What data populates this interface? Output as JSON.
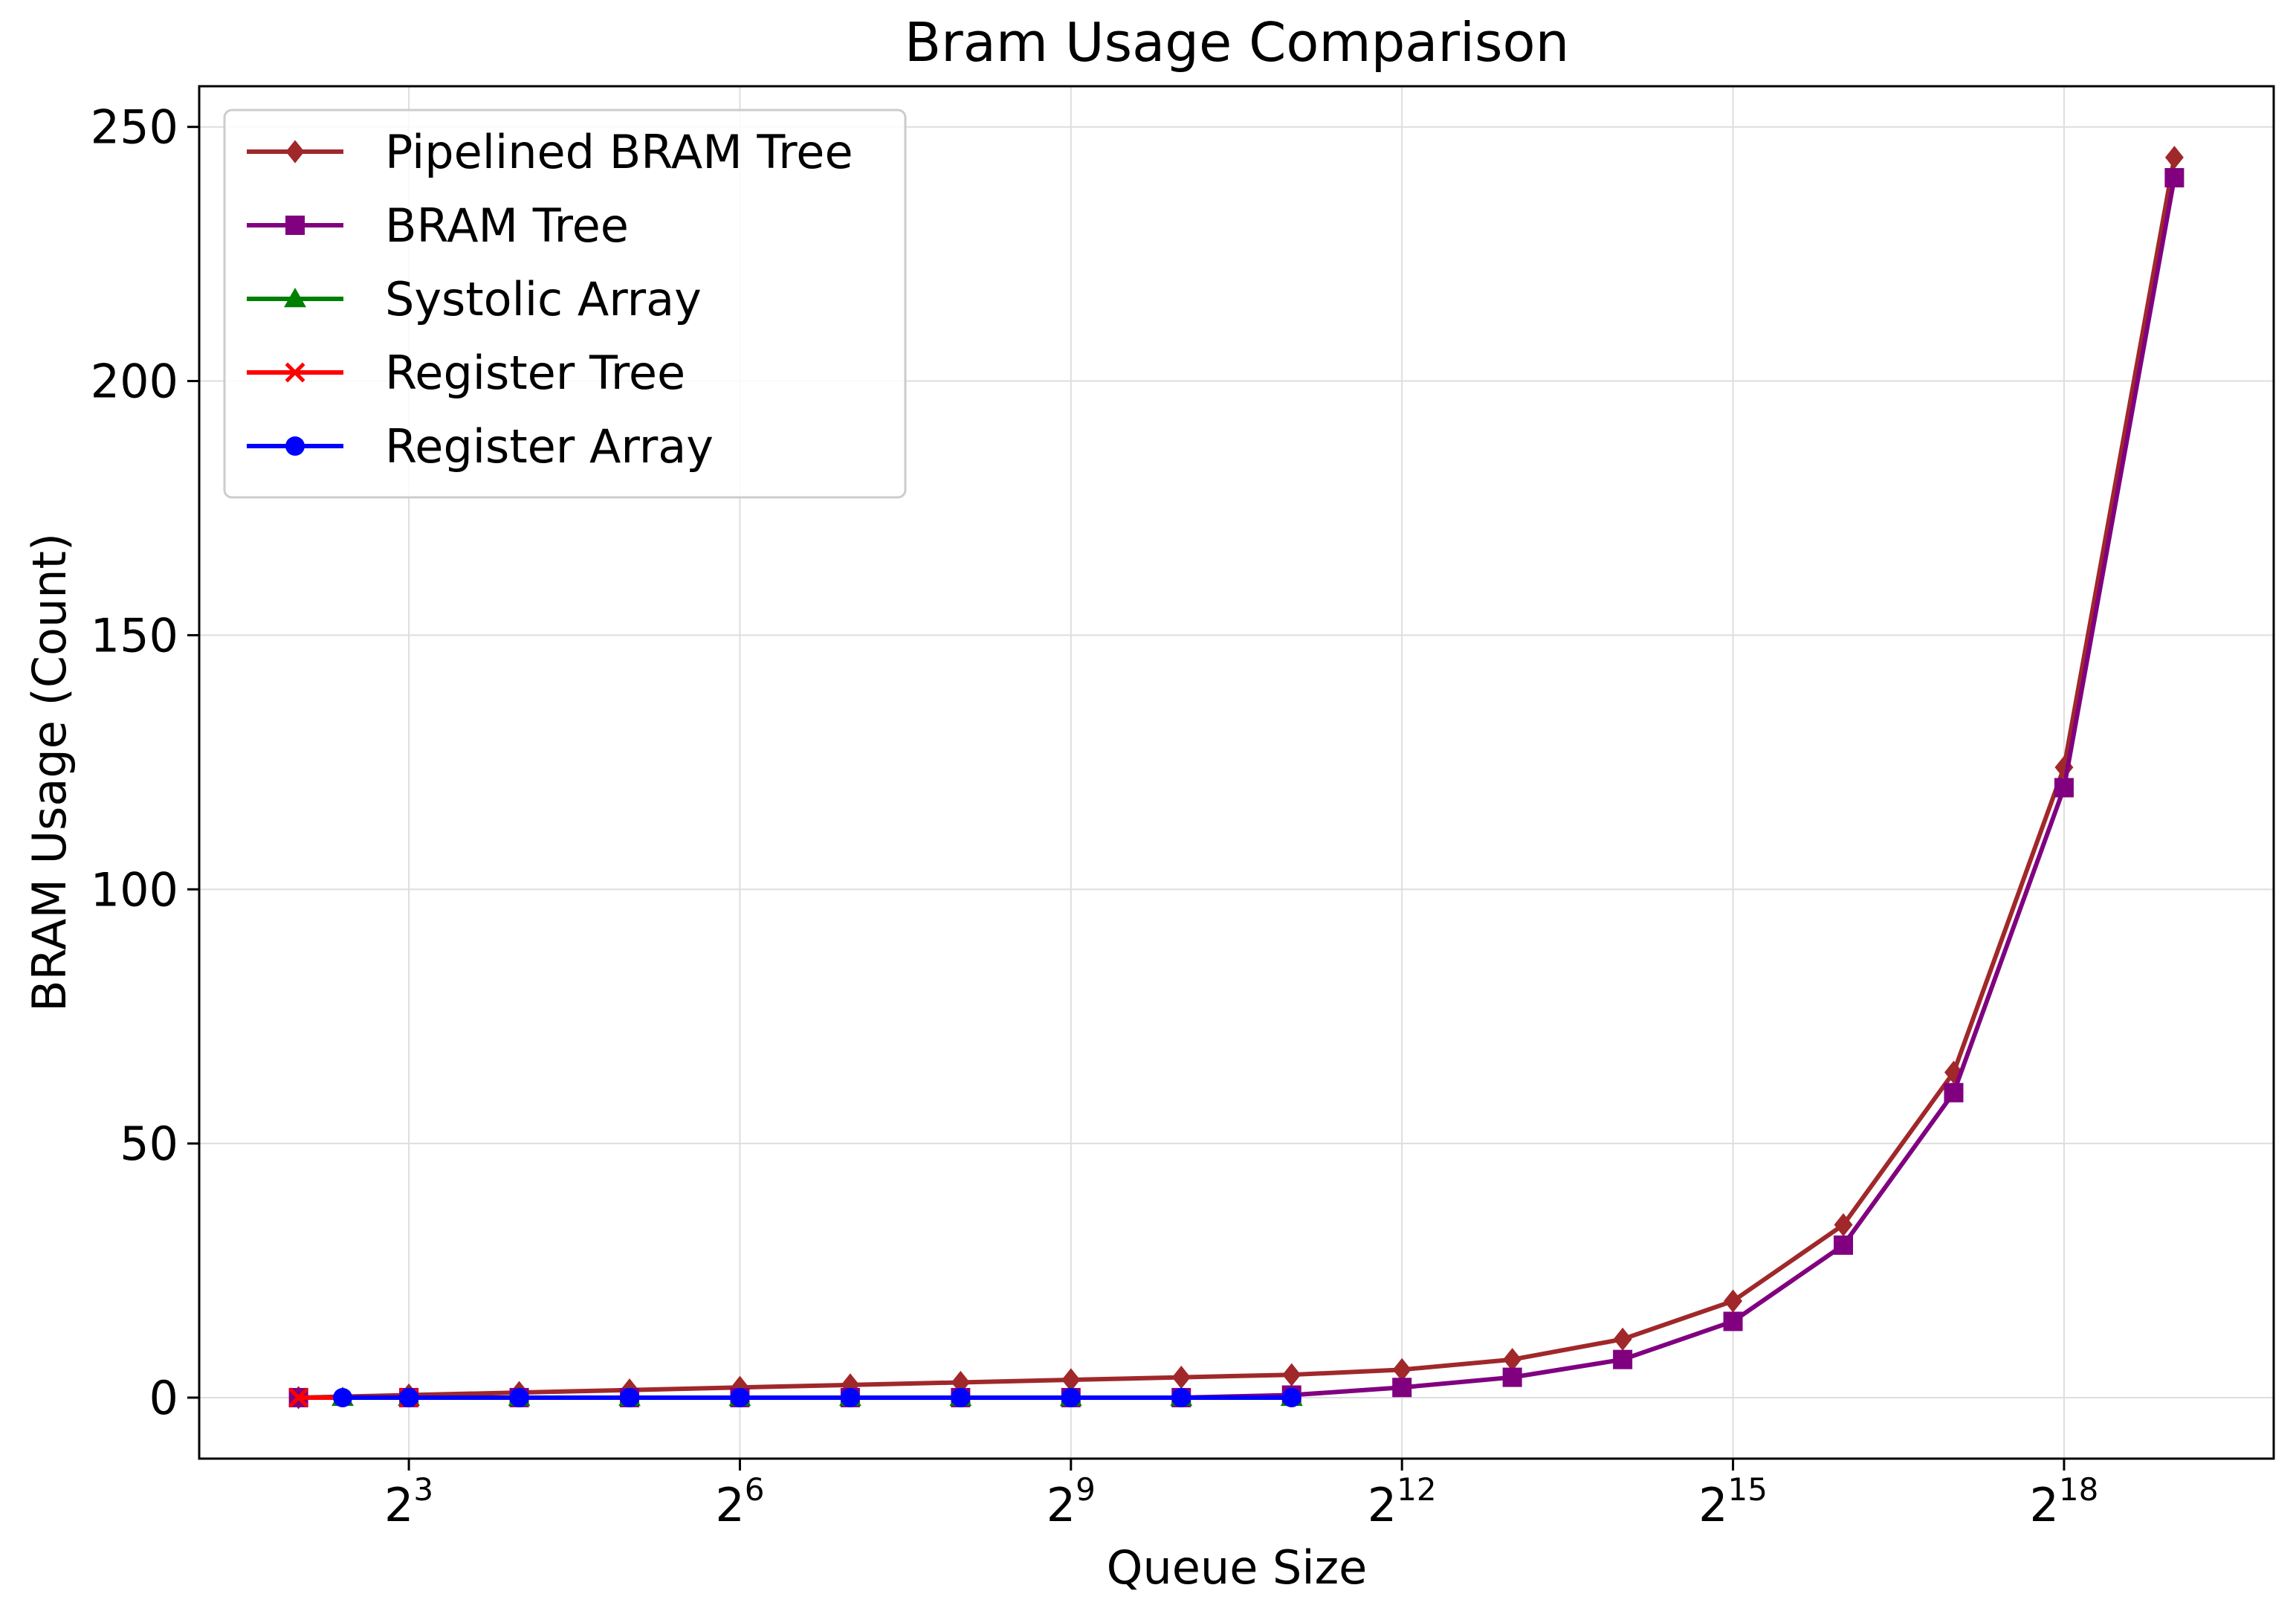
{
  "chart_data": {
    "type": "line",
    "title": "Bram Usage Comparison",
    "xlabel": "Queue Size",
    "ylabel": "BRAM Usage (Count)",
    "x_scale": "log2",
    "xlim_log2": [
      1.1,
      19.9
    ],
    "ylim": [
      -12,
      258
    ],
    "x_ticks": [
      {
        "exp": 3,
        "base": "2",
        "sup": "3"
      },
      {
        "exp": 6,
        "base": "2",
        "sup": "6"
      },
      {
        "exp": 9,
        "base": "2",
        "sup": "9"
      },
      {
        "exp": 12,
        "base": "2",
        "sup": "12"
      },
      {
        "exp": 15,
        "base": "2",
        "sup": "15"
      },
      {
        "exp": 18,
        "base": "2",
        "sup": "18"
      }
    ],
    "y_ticks": [
      0,
      50,
      100,
      150,
      200,
      250
    ],
    "grid": true,
    "legend_position": "upper-left",
    "series": [
      {
        "name": "Pipelined BRAM Tree",
        "color": "#a0282a",
        "marker": "diamond",
        "x_log2": [
          2,
          3,
          4,
          5,
          6,
          7,
          8,
          9,
          10,
          11,
          12,
          13,
          14,
          15,
          16,
          17,
          18,
          19
        ],
        "values": [
          0,
          0.5,
          1,
          1.5,
          2,
          2.5,
          3,
          3.5,
          4,
          4.5,
          5.5,
          7.5,
          11.5,
          19,
          34,
          64,
          124,
          244
        ]
      },
      {
        "name": "BRAM Tree",
        "color": "#800080",
        "marker": "square",
        "x_log2": [
          2,
          3,
          4,
          5,
          6,
          7,
          8,
          9,
          10,
          11,
          12,
          13,
          14,
          15,
          16,
          17,
          18,
          19
        ],
        "values": [
          0,
          0,
          0,
          0,
          0,
          0,
          0,
          0,
          0,
          0.5,
          2,
          4,
          7.5,
          15,
          30,
          60,
          120,
          240
        ]
      },
      {
        "name": "Systolic Array",
        "color": "#008000",
        "marker": "triangle",
        "x_log2": [
          2.4,
          3,
          4,
          5,
          6,
          7,
          8,
          9,
          10,
          11
        ],
        "values": [
          0,
          0,
          0,
          0,
          0,
          0,
          0,
          0,
          0,
          0
        ]
      },
      {
        "name": "Register Tree",
        "color": "#ff0000",
        "marker": "x",
        "x_log2": [
          2,
          3
        ],
        "values": [
          0,
          0
        ]
      },
      {
        "name": "Register Array",
        "color": "#0000ff",
        "marker": "circle",
        "x_log2": [
          2.4,
          3,
          4,
          5,
          6,
          7,
          8,
          9,
          10,
          11
        ],
        "values": [
          0,
          0,
          0,
          0,
          0,
          0,
          0,
          0,
          0,
          0
        ]
      }
    ]
  }
}
